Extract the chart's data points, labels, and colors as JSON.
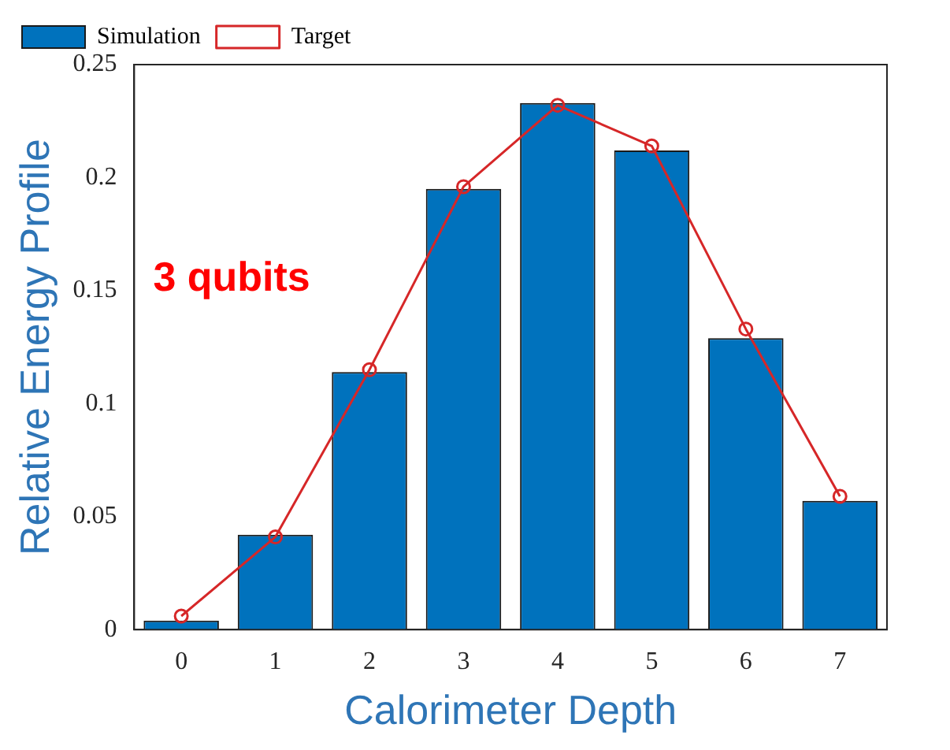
{
  "chart_data": {
    "type": "bar",
    "xlabel": "Calorimeter Depth",
    "ylabel": "Relative Energy Profile",
    "categories": [
      "0",
      "1",
      "2",
      "3",
      "4",
      "5",
      "6",
      "7"
    ],
    "series": [
      {
        "name": "Simulation",
        "color": "#0072bd",
        "values": [
          0.004,
          0.042,
          0.114,
          0.195,
          0.233,
          0.212,
          0.129,
          0.057
        ]
      },
      {
        "name": "Target",
        "type": "line",
        "color": "#d62728",
        "marker": "circle",
        "values": [
          0.006,
          0.041,
          0.115,
          0.196,
          0.232,
          0.214,
          0.133,
          0.059
        ]
      }
    ],
    "ylim": [
      0,
      0.25
    ],
    "yticks": [
      0,
      0.05,
      0.1,
      0.15,
      0.2,
      0.25
    ],
    "grid": false,
    "legend": "top left",
    "annotations": [
      "3 qubits"
    ]
  }
}
